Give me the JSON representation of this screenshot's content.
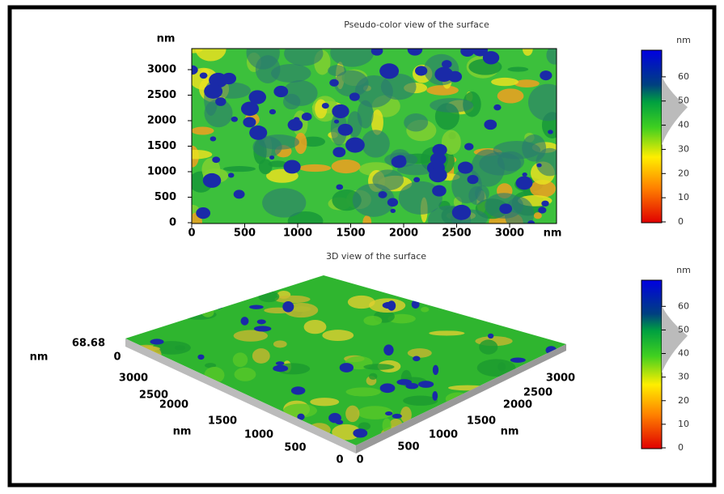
{
  "top_panel": {
    "title": "Pseudo-color view of the surface",
    "y_unit": "nm",
    "x_unit": "nm",
    "yticks": [
      "3000",
      "2500",
      "2000",
      "1500",
      "1000",
      "500",
      "0"
    ],
    "xticks": [
      "0",
      "500",
      "1000",
      "1500",
      "2000",
      "2500",
      "3000"
    ],
    "colorbar": {
      "unit": "nm",
      "ticks": [
        "60",
        "50",
        "40",
        "30",
        "20",
        "10",
        "0"
      ]
    }
  },
  "bottom_panel": {
    "title": "3D view of the surface",
    "height_max": "68.68",
    "height_unit": "nm",
    "height_min": "0",
    "left_axis": {
      "unit": "nm",
      "ticks": [
        "3000",
        "2500",
        "2000",
        "1500",
        "1000",
        "500",
        "0"
      ]
    },
    "right_axis": {
      "unit": "nm",
      "ticks": [
        "3000",
        "2500",
        "2000",
        "1500",
        "1000",
        "500",
        "0"
      ]
    },
    "colorbar": {
      "unit": "nm",
      "ticks": [
        "60",
        "50",
        "40",
        "30",
        "20",
        "10",
        "0"
      ]
    }
  }
}
